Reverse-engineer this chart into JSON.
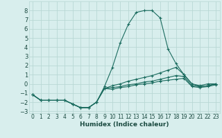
{
  "xlabel": "Humidex (Indice chaleur)",
  "background_color": "#d8eeed",
  "grid_color": "#b8d8d4",
  "line_color": "#1a6b5e",
  "xlim": [
    -0.5,
    23.5
  ],
  "ylim": [
    -3.2,
    9.0
  ],
  "xticks": [
    0,
    1,
    2,
    3,
    4,
    5,
    6,
    7,
    8,
    9,
    10,
    11,
    12,
    13,
    14,
    15,
    16,
    17,
    18,
    19,
    20,
    21,
    22,
    23
  ],
  "yticks": [
    -3,
    -2,
    -1,
    0,
    1,
    2,
    3,
    4,
    5,
    6,
    7,
    8
  ],
  "series": [
    {
      "x": [
        0,
        1,
        2,
        3,
        4,
        5,
        6,
        7,
        8,
        9,
        10,
        11,
        12,
        13,
        14,
        15,
        16,
        17,
        18,
        19,
        20,
        21,
        22,
        23
      ],
      "y": [
        -1.2,
        -1.8,
        -1.8,
        -1.8,
        -1.8,
        -2.2,
        -2.6,
        -2.6,
        -2.0,
        -0.3,
        1.8,
        4.5,
        6.5,
        7.8,
        8.0,
        8.0,
        7.2,
        3.8,
        2.2,
        1.0,
        0.0,
        -0.2,
        0.0,
        0.0
      ]
    },
    {
      "x": [
        0,
        1,
        2,
        3,
        4,
        5,
        6,
        7,
        8,
        9,
        10,
        11,
        12,
        13,
        14,
        15,
        16,
        17,
        18,
        19,
        20,
        21,
        22,
        23
      ],
      "y": [
        -1.2,
        -1.8,
        -1.8,
        -1.8,
        -1.8,
        -2.2,
        -2.6,
        -2.6,
        -2.0,
        -0.5,
        -0.2,
        0.0,
        0.3,
        0.5,
        0.7,
        0.9,
        1.2,
        1.5,
        1.8,
        1.0,
        0.0,
        -0.3,
        -0.2,
        0.0
      ]
    },
    {
      "x": [
        0,
        1,
        2,
        3,
        4,
        5,
        6,
        7,
        8,
        9,
        10,
        11,
        12,
        13,
        14,
        15,
        16,
        17,
        18,
        19,
        20,
        21,
        22,
        23
      ],
      "y": [
        -1.2,
        -1.8,
        -1.8,
        -1.8,
        -1.8,
        -2.2,
        -2.6,
        -2.6,
        -2.0,
        -0.5,
        -0.4,
        -0.3,
        -0.1,
        0.0,
        0.2,
        0.3,
        0.5,
        0.7,
        0.9,
        0.8,
        -0.2,
        -0.3,
        -0.2,
        0.0
      ]
    },
    {
      "x": [
        0,
        1,
        2,
        3,
        4,
        5,
        6,
        7,
        8,
        9,
        10,
        11,
        12,
        13,
        14,
        15,
        16,
        17,
        18,
        19,
        20,
        21,
        22,
        23
      ],
      "y": [
        -1.2,
        -1.8,
        -1.8,
        -1.8,
        -1.8,
        -2.2,
        -2.6,
        -2.6,
        -2.0,
        -0.5,
        -0.6,
        -0.4,
        -0.3,
        -0.1,
        0.0,
        0.1,
        0.3,
        0.4,
        0.5,
        0.6,
        -0.3,
        -0.4,
        -0.3,
        -0.1
      ]
    }
  ]
}
